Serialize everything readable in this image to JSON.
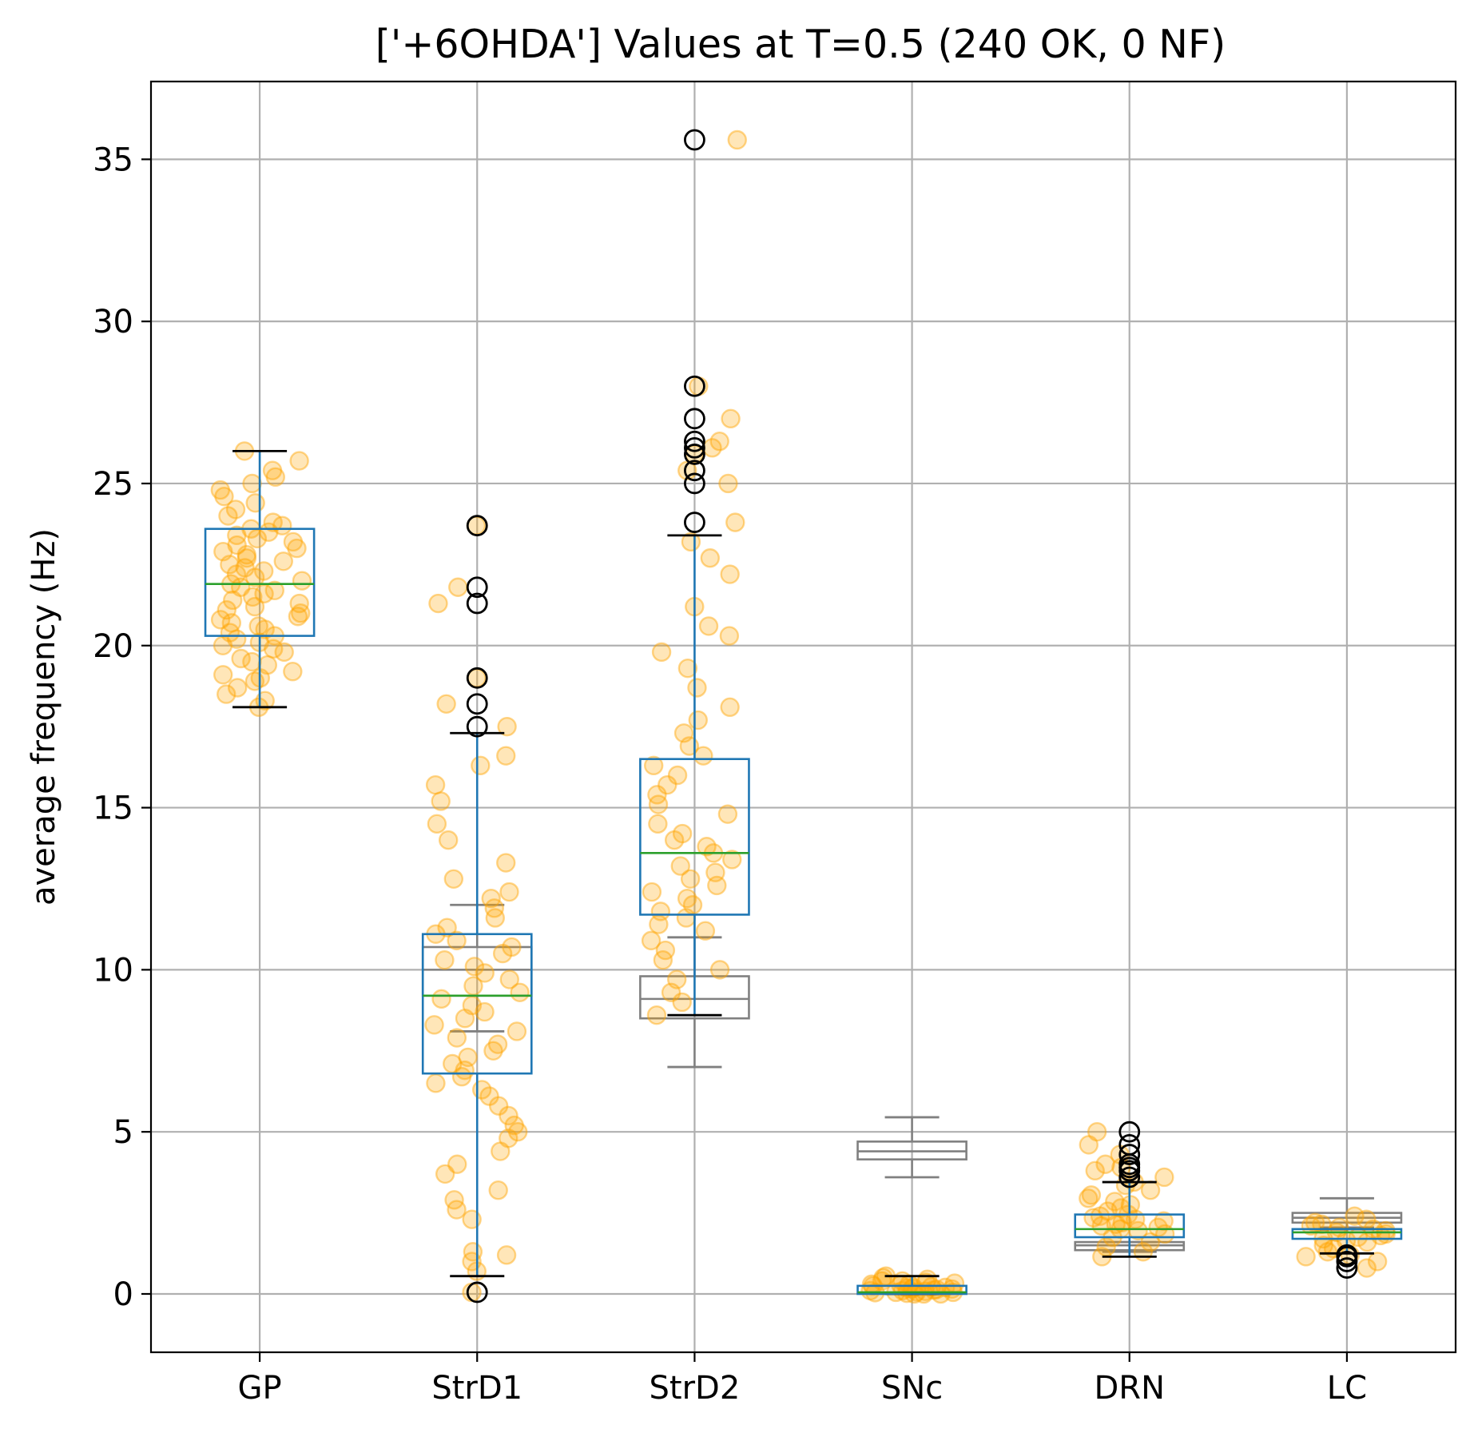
{
  "chart_data": {
    "type": "box",
    "title": "['+6OHDA'] Values at T=0.5 (240 OK, 0 NF)",
    "xlabel": "",
    "ylabel": "average frequency (Hz)",
    "ylim": [
      -1.8,
      37.4
    ],
    "yticks": [
      0,
      5,
      10,
      15,
      20,
      25,
      30,
      35
    ],
    "grid": true,
    "categories": [
      "GP",
      "StrD1",
      "StrD2",
      "SNc",
      "DRN",
      "LC"
    ],
    "colors": {
      "box": "#1f77b4",
      "median": "#2ca02c",
      "reference_box": "#808080",
      "points": "#ffa500",
      "whisker_cap": "#000000",
      "fliers": "#000000"
    },
    "boxes": [
      {
        "category": "GP",
        "whislo": 18.1,
        "q1": 20.3,
        "med": 21.9,
        "q3": 23.6,
        "whishi": 26.0,
        "fliers": []
      },
      {
        "category": "StrD1",
        "whislo": 0.55,
        "q1": 6.8,
        "med": 9.2,
        "q3": 11.1,
        "whishi": 17.3,
        "fliers": [
          0.05,
          17.5,
          18.2,
          19.0,
          21.3,
          21.8,
          23.7
        ]
      },
      {
        "category": "StrD2",
        "whislo": 8.6,
        "q1": 11.7,
        "med": 13.6,
        "q3": 16.5,
        "whishi": 23.4,
        "fliers": [
          23.8,
          25.0,
          25.4,
          25.9,
          26.1,
          26.3,
          27.0,
          28.0,
          35.6
        ]
      },
      {
        "category": "SNc",
        "whislo": 0.0,
        "q1": 0.0,
        "med": 0.05,
        "q3": 0.25,
        "whishi": 0.55,
        "fliers": []
      },
      {
        "category": "DRN",
        "whislo": 1.15,
        "q1": 1.75,
        "med": 2.0,
        "q3": 2.45,
        "whishi": 3.45,
        "fliers": [
          3.6,
          3.8,
          3.9,
          4.0,
          4.3,
          4.6,
          5.0
        ]
      },
      {
        "category": "LC",
        "whislo": 1.25,
        "q1": 1.7,
        "med": 1.9,
        "q3": 2.0,
        "whishi": 2.0,
        "fliers": [
          0.8,
          1.0,
          1.15,
          1.2
        ]
      }
    ],
    "reference_boxes": [
      {
        "category": "StrD1",
        "whislo": 8.1,
        "q1": 9.2,
        "med": 10.0,
        "q3": 10.7,
        "whishi": 12.0
      },
      {
        "category": "StrD2",
        "whislo": 7.0,
        "q1": 8.5,
        "med": 9.1,
        "q3": 9.8,
        "whishi": 11.0
      },
      {
        "category": "SNc",
        "whislo": 3.6,
        "q1": 4.15,
        "med": 4.4,
        "q3": 4.7,
        "whishi": 5.45
      },
      {
        "category": "DRN",
        "whislo": 1.3,
        "q1": 1.35,
        "med": 1.5,
        "q3": 1.6,
        "whishi": 1.6
      },
      {
        "category": "LC",
        "whislo": 2.05,
        "q1": 2.2,
        "med": 2.35,
        "q3": 2.5,
        "whishi": 2.95
      }
    ],
    "scatter": [
      {
        "category": "GP",
        "values": [
          18.1,
          18.3,
          18.5,
          18.7,
          18.9,
          19.0,
          19.1,
          19.2,
          19.4,
          19.5,
          19.6,
          19.8,
          19.9,
          20.0,
          20.1,
          20.2,
          20.3,
          20.4,
          20.5,
          20.6,
          20.7,
          20.8,
          20.9,
          21.0,
          21.1,
          21.2,
          21.3,
          21.4,
          21.5,
          21.6,
          21.7,
          21.8,
          21.9,
          22.0,
          22.1,
          22.2,
          22.3,
          22.4,
          22.5,
          22.6,
          22.7,
          22.8,
          22.9,
          23.0,
          23.1,
          23.2,
          23.3,
          23.4,
          23.5,
          23.6,
          23.7,
          23.8,
          24.0,
          24.2,
          24.4,
          24.6,
          24.8,
          25.0,
          25.2,
          25.4,
          25.7,
          26.0
        ]
      },
      {
        "category": "StrD1",
        "values": [
          0.05,
          0.7,
          1.0,
          1.2,
          1.3,
          2.3,
          2.6,
          2.9,
          3.2,
          3.7,
          4.0,
          4.4,
          4.8,
          5.0,
          5.2,
          5.5,
          5.8,
          6.1,
          6.3,
          6.5,
          6.7,
          6.9,
          7.1,
          7.3,
          7.5,
          7.7,
          7.9,
          8.1,
          8.3,
          8.5,
          8.7,
          8.9,
          9.1,
          9.3,
          9.5,
          9.7,
          9.9,
          10.1,
          10.3,
          10.5,
          10.7,
          10.9,
          11.1,
          11.3,
          11.6,
          11.9,
          12.2,
          12.4,
          12.8,
          13.3,
          14.0,
          14.5,
          15.2,
          15.7,
          16.3,
          16.6,
          17.5,
          18.2,
          19.0,
          21.3,
          21.8,
          23.7
        ]
      },
      {
        "category": "StrD2",
        "values": [
          8.6,
          9.0,
          9.3,
          9.7,
          10.0,
          10.3,
          10.6,
          10.9,
          11.2,
          11.4,
          11.6,
          11.8,
          12.0,
          12.2,
          12.4,
          12.6,
          12.8,
          13.0,
          13.2,
          13.4,
          13.6,
          13.8,
          14.0,
          14.2,
          14.5,
          14.8,
          15.1,
          15.4,
          15.7,
          16.0,
          16.3,
          16.6,
          16.9,
          17.3,
          17.7,
          18.1,
          18.7,
          19.3,
          19.8,
          20.3,
          20.6,
          21.2,
          22.2,
          22.7,
          23.2,
          23.8,
          25.0,
          25.4,
          25.9,
          26.1,
          26.3,
          27.0,
          28.0,
          35.6
        ]
      },
      {
        "category": "SNc",
        "values": [
          0.0,
          0.0,
          0.02,
          0.04,
          0.05,
          0.06,
          0.08,
          0.1,
          0.12,
          0.14,
          0.16,
          0.18,
          0.2,
          0.22,
          0.25,
          0.28,
          0.3,
          0.33,
          0.36,
          0.4,
          0.45,
          0.5,
          0.55,
          0.0,
          0.05,
          0.1,
          0.15,
          0.2,
          0.3,
          0.4
        ]
      },
      {
        "category": "DRN",
        "values": [
          1.15,
          1.3,
          1.45,
          1.6,
          1.75,
          1.85,
          1.95,
          2.0,
          2.05,
          2.1,
          2.15,
          2.2,
          2.25,
          2.3,
          2.35,
          2.4,
          2.45,
          2.55,
          2.65,
          2.75,
          2.85,
          2.95,
          3.05,
          3.2,
          3.35,
          3.45,
          3.6,
          3.8,
          3.9,
          4.0,
          4.3,
          4.6,
          5.0
        ]
      },
      {
        "category": "LC",
        "values": [
          0.8,
          1.0,
          1.15,
          1.2,
          1.3,
          1.4,
          1.5,
          1.6,
          1.65,
          1.7,
          1.75,
          1.8,
          1.85,
          1.9,
          1.95,
          2.0,
          2.05,
          2.1,
          2.15,
          2.2,
          2.3,
          2.4
        ]
      }
    ]
  }
}
